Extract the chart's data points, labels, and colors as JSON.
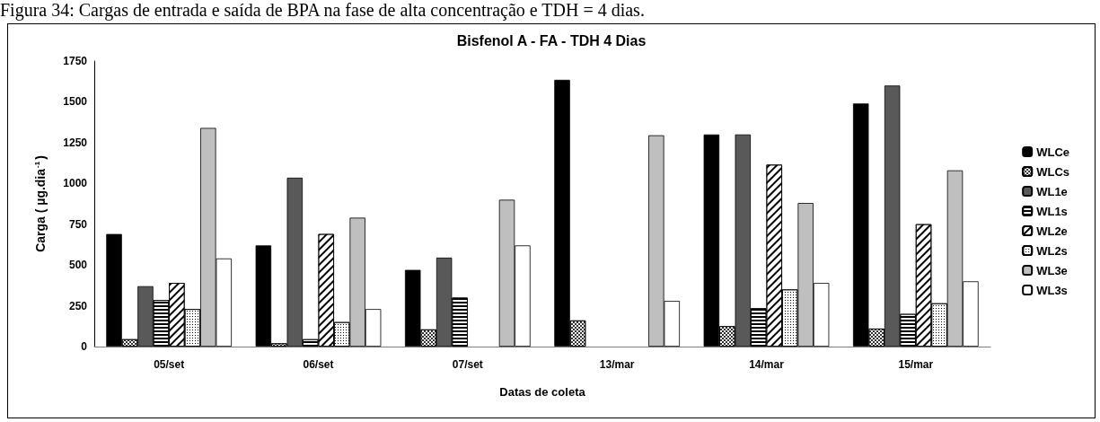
{
  "chart_data": {
    "type": "bar",
    "title": "Bisfenol A - FA - TDH 4 Dias",
    "subtitle": "Figura 34: Cargas de entrada e saída de BPA na fase de alta concentração e TDH = 4 dias.",
    "xlabel": "Datas de coleta",
    "ylabel": "Carga ( µg.dia$^{-1}$)",
    "categories": [
      "05/set",
      "06/set",
      "07/set",
      "13/mar",
      "14/mar",
      "15/mar"
    ],
    "series": [
      {
        "name": "WLCe",
        "color": "#000000",
        "values": [
          690,
          620,
          470,
          1635,
          1300,
          1490
        ]
      },
      {
        "name": "WLCs",
        "color": "#ffffff",
        "values": [
          45,
          20,
          105,
          160,
          125,
          110
        ]
      },
      {
        "name": "WL1e",
        "color": "#595959",
        "values": [
          370,
          1035,
          545,
          null,
          1300,
          1600
        ]
      },
      {
        "name": "WL1s",
        "color": "#ffffff",
        "values": [
          285,
          45,
          300,
          null,
          235,
          200
        ]
      },
      {
        "name": "WL2e",
        "color": "#ffffff",
        "values": [
          390,
          690,
          null,
          null,
          1115,
          750
        ]
      },
      {
        "name": "WL2s",
        "color": "#ffffff",
        "values": [
          230,
          150,
          null,
          null,
          350,
          265
        ]
      },
      {
        "name": "WL3e",
        "color": "#bfbfbf",
        "values": [
          1340,
          790,
          900,
          1295,
          880,
          1080
        ]
      },
      {
        "name": "WL3s",
        "color": "#ffffff",
        "values": [
          540,
          230,
          620,
          280,
          390,
          400
        ]
      }
    ],
    "ylim": [
      0,
      1750
    ],
    "yticks": [
      0,
      250,
      500,
      750,
      1000,
      1250,
      1500,
      1750
    ],
    "grid": false,
    "legend": "right"
  }
}
